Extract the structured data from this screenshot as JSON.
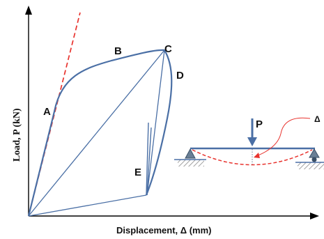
{
  "axes": {
    "x_label": "Displacement, Δ  (mm)",
    "y_label": "Load, P (kN)"
  },
  "points": {
    "a": "A",
    "b": "B",
    "c": "C",
    "d": "D",
    "e": "E"
  },
  "beam": {
    "load_label": "P",
    "deflection_label": "Δ"
  },
  "colors": {
    "curve": "#4a6fa5",
    "tangent": "#e8332e",
    "axis": "#000000",
    "hatch": "#8a8a8a"
  }
}
